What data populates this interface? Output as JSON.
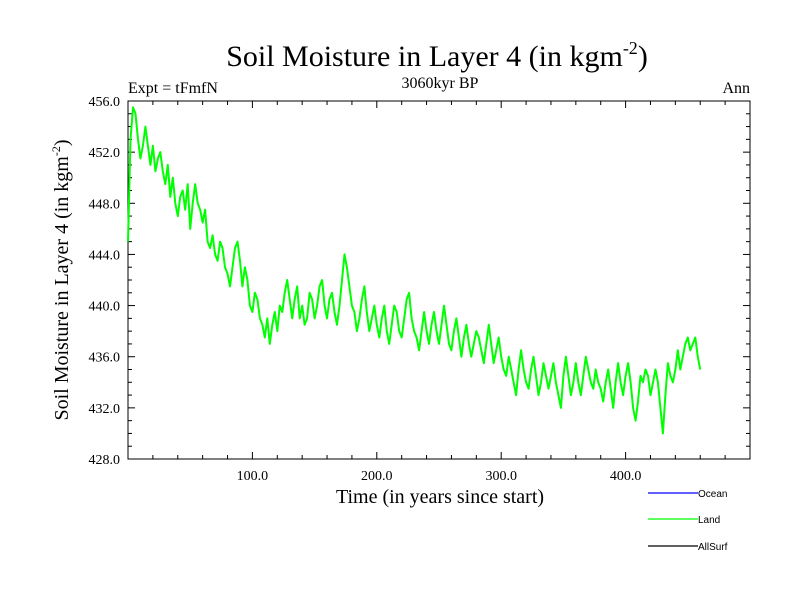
{
  "chart_data": {
    "type": "line",
    "title_main": "Soil Moisture in Layer 4 (in kgm",
    "title_sup": "-2",
    "title_close": ")",
    "subtitle_left": "Expt = tFmfN",
    "subtitle_center": "3060kyr BP",
    "subtitle_right": "Ann",
    "xlabel": "Time (in years since start)",
    "ylabel_main": "Soil Moisture in Layer 4 (in kgm",
    "ylabel_sup": "-2",
    "ylabel_close": ")",
    "xlim": [
      0,
      500
    ],
    "ylim": [
      428,
      456
    ],
    "x_ticks": [
      100,
      200,
      300,
      400
    ],
    "x_tick_labels": [
      "100.0",
      "200.0",
      "300.0",
      "400.0"
    ],
    "y_ticks": [
      428,
      432,
      436,
      440,
      444,
      448,
      452,
      456
    ],
    "y_tick_labels": [
      "428.0",
      "432.0",
      "436.0",
      "440.0",
      "444.0",
      "448.0",
      "452.0",
      "456.0"
    ],
    "legend": [
      {
        "name": "Ocean",
        "color": "#0000ff"
      },
      {
        "name": "Land",
        "color": "#00ff00"
      },
      {
        "name": "AllSurf",
        "color": "#000000"
      }
    ],
    "series": [
      {
        "name": "Land",
        "color": "#00ff00",
        "x_start": 0,
        "x_step": 2,
        "values": [
          445,
          453,
          455.5,
          455,
          453,
          451.5,
          452.5,
          454,
          452.5,
          451,
          452.5,
          450.5,
          451.5,
          452,
          450.5,
          449.5,
          451,
          448.5,
          450,
          448,
          447,
          448.5,
          449,
          447.5,
          449.5,
          446,
          448,
          449.5,
          448,
          447.5,
          446.5,
          447.5,
          445,
          444.5,
          445.5,
          444,
          443.5,
          445,
          444.5,
          443,
          442.5,
          441.5,
          443,
          444.5,
          445,
          443.5,
          441.5,
          443,
          442,
          440,
          439.5,
          441,
          440.5,
          439,
          438.5,
          437.5,
          439,
          437,
          438.5,
          439.5,
          438,
          440,
          439.5,
          441,
          442,
          440.5,
          439,
          440.5,
          441.5,
          439,
          440,
          438.5,
          439,
          441,
          440.5,
          439,
          440,
          441.5,
          442,
          440,
          439,
          440.5,
          441,
          439.5,
          438.5,
          440,
          442,
          444,
          443,
          441.5,
          440,
          439.5,
          438,
          439,
          440.5,
          441.5,
          439.5,
          438,
          439,
          440,
          438.5,
          437.5,
          439,
          440,
          438,
          437,
          438.5,
          440,
          439.5,
          438,
          437.5,
          439,
          440.5,
          441,
          439,
          438,
          437.5,
          436.5,
          438,
          439.5,
          438,
          437,
          438.5,
          439.5,
          438,
          437,
          438.5,
          440,
          438.5,
          437,
          436.5,
          438,
          439,
          437.5,
          436,
          437.5,
          438.5,
          437,
          436,
          437,
          438,
          437.5,
          436.5,
          435.5,
          437,
          438.5,
          437,
          435.5,
          436.5,
          437.5,
          436,
          435,
          434.5,
          436,
          435,
          434,
          433,
          435,
          436.5,
          435,
          434,
          433.5,
          435,
          436,
          434.5,
          433,
          434,
          435.5,
          434.5,
          433.5,
          434.5,
          435.5,
          434,
          433,
          432,
          434.5,
          436,
          434.5,
          433,
          434,
          435.5,
          434,
          433,
          434.5,
          436,
          435,
          434,
          433.5,
          435,
          434,
          433.5,
          432.5,
          434,
          435,
          433.5,
          432,
          434,
          435.5,
          434,
          433,
          434.5,
          435.5,
          434,
          432,
          431,
          432.5,
          434.5,
          434,
          435,
          434.5,
          433,
          434,
          435,
          434,
          432,
          430,
          433,
          435.5,
          434.5,
          434,
          435,
          436.5,
          435,
          436,
          437,
          437.5,
          436.5,
          437,
          437.5,
          436,
          435
        ]
      }
    ]
  }
}
